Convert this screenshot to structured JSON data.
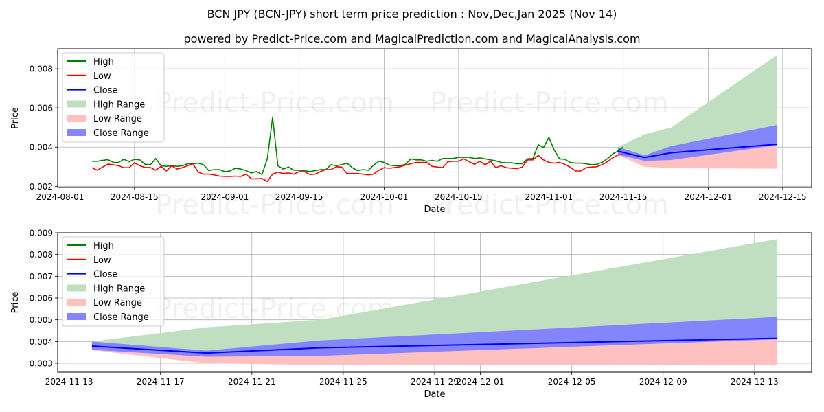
{
  "title": "BCN JPY (BCN-JPY) short term price prediction : Nov,Dec,Jan 2025 (Nov 14)",
  "subtitle": "powered by Predict-Price.com and MagicalPrediction.com and MagicalAnalysis.com",
  "watermark": "Predict-Price.com",
  "colors": {
    "high": "#008000",
    "low": "#ff0000",
    "close": "#0000ff",
    "high_range": "#c0dfc0",
    "low_range": "#ffc0c0",
    "close_range": "#8080ff"
  },
  "legend": [
    "High",
    "Low",
    "Close",
    "High Range",
    "Low Range",
    "Close Range"
  ],
  "chart_data": [
    {
      "type": "line",
      "xlabel": "Date",
      "ylabel": "Price",
      "ylim": [
        0.00194,
        0.00902
      ],
      "yticks": [
        "0.002",
        "0.004",
        "0.006",
        "0.008"
      ],
      "xticks": [
        "2024-08-01",
        "2024-08-15",
        "2024-09-01",
        "2024-09-15",
        "2024-10-01",
        "2024-10-15",
        "2024-11-01",
        "2024-11-15",
        "2024-12-01",
        "2024-12-15"
      ],
      "grid": true,
      "legend_position": "top-left",
      "history_start": "2024-08-07",
      "high": [
        0.00328,
        0.00328,
        0.00332,
        0.00336,
        0.00322,
        0.00322,
        0.00338,
        0.00325,
        0.00338,
        0.00335,
        0.00312,
        0.0031,
        0.00342,
        0.00305,
        0.00302,
        0.00305,
        0.00302,
        0.00305,
        0.00315,
        0.00315,
        0.00318,
        0.0031,
        0.0028,
        0.00285,
        0.00285,
        0.00275,
        0.00278,
        0.00292,
        0.00288,
        0.0028,
        0.00268,
        0.00275,
        0.0026,
        0.0034,
        0.00552,
        0.00305,
        0.00288,
        0.00298,
        0.00282,
        0.00282,
        0.0028,
        0.00275,
        0.0028,
        0.00285,
        0.00285,
        0.0031,
        0.00305,
        0.0031,
        0.00318,
        0.00295,
        0.0028,
        0.00285,
        0.00282,
        0.00308,
        0.00328,
        0.00322,
        0.00308,
        0.00305,
        0.00305,
        0.00312,
        0.0034,
        0.00335,
        0.00335,
        0.00328,
        0.00332,
        0.00328,
        0.00342,
        0.00342,
        0.00342,
        0.00348,
        0.00348,
        0.00348,
        0.00342,
        0.00345,
        0.0034,
        0.00335,
        0.0033,
        0.00322,
        0.0032,
        0.0032,
        0.00315,
        0.00315,
        0.0034,
        0.00342,
        0.00412,
        0.00398,
        0.0045,
        0.00385,
        0.0034,
        0.00338,
        0.00322,
        0.00318,
        0.00318,
        0.00315,
        0.0031,
        0.00312,
        0.00322,
        0.0034,
        0.00365,
        0.0038,
        0.00402
      ],
      "low": [
        0.00295,
        0.00282,
        0.00298,
        0.00313,
        0.0031,
        0.00305,
        0.00295,
        0.00295,
        0.0032,
        0.00305,
        0.00296,
        0.00296,
        0.00282,
        0.00302,
        0.00278,
        0.00305,
        0.00288,
        0.00295,
        0.00305,
        0.00315,
        0.00272,
        0.00262,
        0.00262,
        0.00258,
        0.00252,
        0.0025,
        0.0025,
        0.00252,
        0.0025,
        0.00262,
        0.00238,
        0.00238,
        0.0024,
        0.00225,
        0.00262,
        0.00272,
        0.00265,
        0.00268,
        0.00262,
        0.00275,
        0.00275,
        0.0026,
        0.00262,
        0.00275,
        0.00285,
        0.00285,
        0.003,
        0.00298,
        0.00265,
        0.00265,
        0.00265,
        0.00262,
        0.00258,
        0.00262,
        0.00282,
        0.00295,
        0.00292,
        0.00296,
        0.003,
        0.00308,
        0.00315,
        0.00322,
        0.00322,
        0.00322,
        0.00302,
        0.00298,
        0.00295,
        0.00325,
        0.00328,
        0.00328,
        0.0034,
        0.00325,
        0.00312,
        0.00328,
        0.0031,
        0.00328,
        0.00295,
        0.00305,
        0.00295,
        0.00292,
        0.0029,
        0.00298,
        0.00335,
        0.00335,
        0.00358,
        0.00335,
        0.00322,
        0.00318,
        0.00322,
        0.00312,
        0.00298,
        0.00278,
        0.00278,
        0.00295,
        0.00298,
        0.003,
        0.0031,
        0.00325,
        0.00345,
        0.0036,
        0.00362
      ]
    },
    {
      "type": "area",
      "xlabel": "Date",
      "ylabel": "Price",
      "ylim": [
        0.00259,
        0.009
      ],
      "yticks": [
        "0.003",
        "0.004",
        "0.005",
        "0.006",
        "0.007",
        "0.008",
        "0.009"
      ],
      "xticks": [
        "2024-11-13",
        "2024-11-17",
        "2024-11-21",
        "2024-11-25",
        "2024-11-29",
        "2024-12-01",
        "2024-12-05",
        "2024-12-09",
        "2024-12-13"
      ],
      "grid": true,
      "legend_position": "top-left"
    }
  ],
  "forecast": {
    "dates": [
      "2024-11-14",
      "2024-11-19",
      "2024-11-24",
      "2024-12-14"
    ],
    "close": [
      0.00379,
      0.00347,
      0.00371,
      0.00415
    ],
    "close_range_upper": [
      0.004,
      0.00358,
      0.00405,
      0.00513
    ],
    "close_range_lower": [
      0.00362,
      0.0033,
      0.00334,
      0.0041
    ],
    "high_range_upper": [
      0.004,
      0.00465,
      0.005,
      0.00871
    ],
    "high_range_lower": [
      0.00379,
      0.00347,
      0.00371,
      0.00415
    ],
    "low_range_upper": [
      0.00379,
      0.00347,
      0.00371,
      0.00415
    ],
    "low_range_lower": [
      0.0036,
      0.003,
      0.00292,
      0.0029
    ]
  }
}
